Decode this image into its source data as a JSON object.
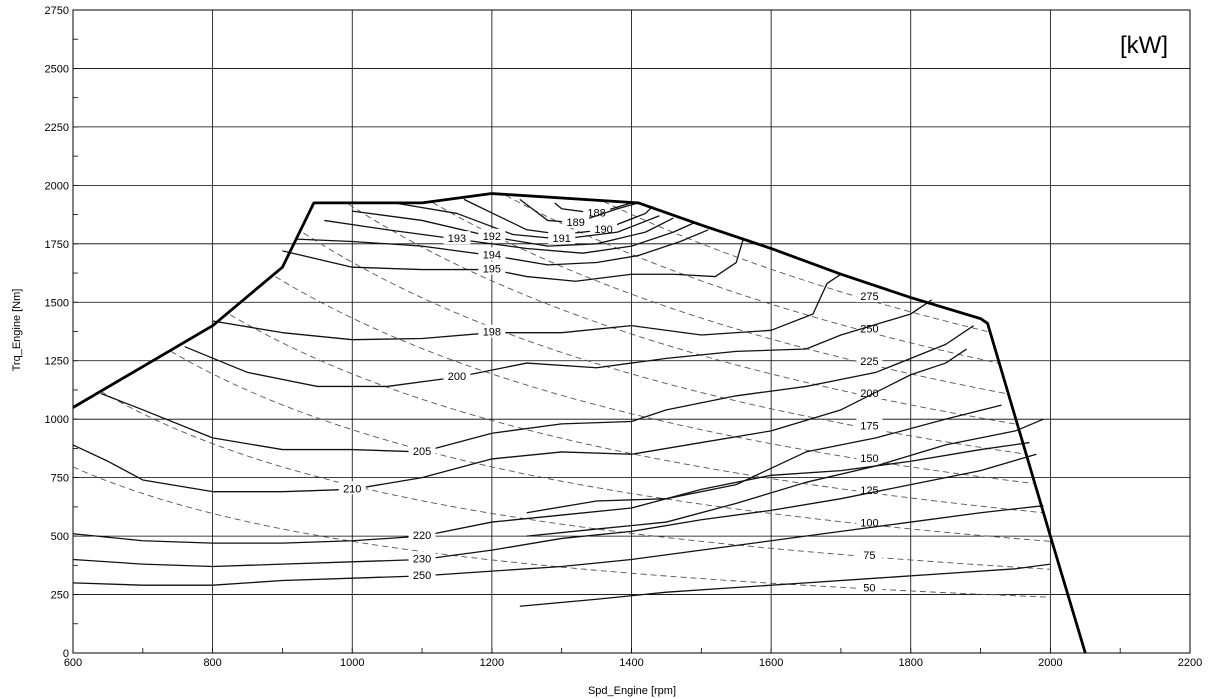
{
  "chart_data": {
    "type": "contour",
    "title": "",
    "xlabel": "Spd_Engine [rpm]",
    "ylabel": "Trq_Engine [Nm]",
    "unit_label": "[kW]",
    "xlim": [
      600,
      2200
    ],
    "ylim": [
      0,
      2750
    ],
    "x_ticks": [
      600,
      800,
      1000,
      1200,
      1400,
      1600,
      1800,
      2000,
      2200
    ],
    "y_ticks": [
      0,
      250,
      500,
      750,
      1000,
      1250,
      1500,
      1750,
      2000,
      2250,
      2500,
      2750
    ],
    "grid": true,
    "full_load_curve": [
      [
        600,
        1050
      ],
      [
        800,
        1400
      ],
      [
        900,
        1650
      ],
      [
        945,
        1925
      ],
      [
        1100,
        1925
      ],
      [
        1200,
        1965
      ],
      [
        1410,
        1925
      ],
      [
        1500,
        1830
      ],
      [
        1600,
        1730
      ],
      [
        1700,
        1620
      ],
      [
        1800,
        1520
      ],
      [
        1900,
        1430
      ],
      [
        1910,
        1410
      ],
      [
        2000,
        500
      ],
      [
        2050,
        0
      ]
    ],
    "bsfc_contours": [
      {
        "label": "188",
        "points": [
          [
            1290,
            1925
          ],
          [
            1300,
            1900
          ],
          [
            1350,
            1880
          ],
          [
            1400,
            1925
          ]
        ]
      },
      {
        "label": "189",
        "points": [
          [
            1240,
            1940
          ],
          [
            1280,
            1850
          ],
          [
            1320,
            1840
          ],
          [
            1380,
            1900
          ],
          [
            1410,
            1925
          ]
        ]
      },
      {
        "label": "190",
        "points": [
          [
            1160,
            1940
          ],
          [
            1250,
            1810
          ],
          [
            1300,
            1790
          ],
          [
            1360,
            1810
          ],
          [
            1420,
            1880
          ],
          [
            1430,
            1910
          ]
        ]
      },
      {
        "label": "191",
        "points": [
          [
            1060,
            1925
          ],
          [
            1150,
            1880
          ],
          [
            1230,
            1790
          ],
          [
            1300,
            1770
          ],
          [
            1380,
            1800
          ],
          [
            1440,
            1870
          ]
        ]
      },
      {
        "label": "192",
        "points": [
          [
            1000,
            1890
          ],
          [
            1100,
            1850
          ],
          [
            1200,
            1780
          ],
          [
            1280,
            1740
          ],
          [
            1350,
            1750
          ],
          [
            1420,
            1800
          ],
          [
            1460,
            1860
          ]
        ]
      },
      {
        "label": "193",
        "points": [
          [
            960,
            1850
          ],
          [
            1050,
            1810
          ],
          [
            1150,
            1770
          ],
          [
            1250,
            1730
          ],
          [
            1330,
            1710
          ],
          [
            1400,
            1740
          ],
          [
            1460,
            1800
          ],
          [
            1490,
            1840
          ]
        ]
      },
      {
        "label": "194",
        "points": [
          [
            920,
            1770
          ],
          [
            1000,
            1760
          ],
          [
            1100,
            1740
          ],
          [
            1200,
            1700
          ],
          [
            1280,
            1660
          ],
          [
            1350,
            1670
          ],
          [
            1410,
            1700
          ],
          [
            1470,
            1760
          ],
          [
            1510,
            1810
          ]
        ]
      },
      {
        "label": "195",
        "points": [
          [
            900,
            1720
          ],
          [
            1000,
            1650
          ],
          [
            1100,
            1640
          ],
          [
            1200,
            1640
          ],
          [
            1250,
            1610
          ],
          [
            1320,
            1590
          ],
          [
            1400,
            1620
          ],
          [
            1460,
            1620
          ],
          [
            1520,
            1610
          ],
          [
            1550,
            1670
          ],
          [
            1560,
            1770
          ]
        ]
      },
      {
        "label": "198",
        "points": [
          [
            800,
            1420
          ],
          [
            900,
            1370
          ],
          [
            1000,
            1340
          ],
          [
            1100,
            1345
          ],
          [
            1200,
            1370
          ],
          [
            1300,
            1370
          ],
          [
            1400,
            1400
          ],
          [
            1500,
            1360
          ],
          [
            1600,
            1380
          ],
          [
            1660,
            1450
          ],
          [
            1680,
            1580
          ],
          [
            1700,
            1620
          ]
        ]
      },
      {
        "label": "200",
        "points": [
          [
            760,
            1310
          ],
          [
            850,
            1200
          ],
          [
            950,
            1140
          ],
          [
            1050,
            1140
          ],
          [
            1150,
            1180
          ],
          [
            1250,
            1240
          ],
          [
            1350,
            1220
          ],
          [
            1450,
            1260
          ],
          [
            1550,
            1290
          ],
          [
            1650,
            1300
          ],
          [
            1700,
            1360
          ],
          [
            1800,
            1450
          ],
          [
            1830,
            1510
          ]
        ]
      },
      {
        "label": "205",
        "points": [
          [
            640,
            1110
          ],
          [
            700,
            1040
          ],
          [
            800,
            920
          ],
          [
            900,
            870
          ],
          [
            1000,
            870
          ],
          [
            1100,
            860
          ],
          [
            1200,
            940
          ],
          [
            1300,
            980
          ],
          [
            1400,
            990
          ],
          [
            1450,
            1040
          ],
          [
            1550,
            1100
          ],
          [
            1650,
            1140
          ],
          [
            1750,
            1200
          ],
          [
            1850,
            1320
          ],
          [
            1890,
            1400
          ]
        ]
      },
      {
        "label": "210",
        "points": [
          [
            600,
            890
          ],
          [
            650,
            820
          ],
          [
            700,
            740
          ],
          [
            800,
            690
          ],
          [
            900,
            690
          ],
          [
            1000,
            700
          ],
          [
            1100,
            750
          ],
          [
            1200,
            830
          ],
          [
            1300,
            860
          ],
          [
            1400,
            850
          ],
          [
            1500,
            900
          ],
          [
            1600,
            950
          ],
          [
            1700,
            1040
          ],
          [
            1800,
            1190
          ],
          [
            1850,
            1240
          ],
          [
            1880,
            1300
          ]
        ]
      },
      {
        "label": "",
        "points": [
          [
            1250,
            600
          ],
          [
            1350,
            650
          ],
          [
            1450,
            660
          ],
          [
            1550,
            720
          ],
          [
            1650,
            860
          ],
          [
            1750,
            920
          ],
          [
            1850,
            1000
          ],
          [
            1930,
            1060
          ]
        ]
      },
      {
        "label": "",
        "points": [
          [
            1250,
            500
          ],
          [
            1350,
            530
          ],
          [
            1450,
            560
          ],
          [
            1550,
            640
          ],
          [
            1650,
            730
          ],
          [
            1750,
            800
          ],
          [
            1850,
            890
          ],
          [
            1950,
            950
          ],
          [
            1990,
            1000
          ]
        ]
      },
      {
        "label": "220",
        "points": [
          [
            600,
            510
          ],
          [
            700,
            480
          ],
          [
            800,
            470
          ],
          [
            900,
            470
          ],
          [
            1000,
            480
          ],
          [
            1100,
            500
          ],
          [
            1200,
            560
          ],
          [
            1300,
            590
          ],
          [
            1400,
            620
          ],
          [
            1500,
            700
          ],
          [
            1600,
            760
          ],
          [
            1700,
            780
          ],
          [
            1800,
            820
          ],
          [
            1900,
            870
          ],
          [
            1970,
            900
          ]
        ]
      },
      {
        "label": "230",
        "points": [
          [
            600,
            400
          ],
          [
            700,
            380
          ],
          [
            800,
            370
          ],
          [
            900,
            380
          ],
          [
            1000,
            390
          ],
          [
            1100,
            400
          ],
          [
            1200,
            440
          ],
          [
            1300,
            490
          ],
          [
            1400,
            520
          ],
          [
            1500,
            570
          ],
          [
            1600,
            610
          ],
          [
            1700,
            660
          ],
          [
            1800,
            720
          ],
          [
            1900,
            780
          ],
          [
            1980,
            850
          ]
        ]
      },
      {
        "label": "250",
        "points": [
          [
            600,
            300
          ],
          [
            700,
            290
          ],
          [
            800,
            290
          ],
          [
            900,
            310
          ],
          [
            1000,
            320
          ],
          [
            1100,
            330
          ],
          [
            1200,
            350
          ],
          [
            1300,
            370
          ],
          [
            1400,
            400
          ],
          [
            1500,
            440
          ],
          [
            1600,
            480
          ],
          [
            1700,
            520
          ],
          [
            1800,
            560
          ],
          [
            1900,
            600
          ],
          [
            1990,
            630
          ]
        ]
      },
      {
        "label": "",
        "points": [
          [
            1240,
            200
          ],
          [
            1350,
            230
          ],
          [
            1450,
            260
          ],
          [
            1550,
            280
          ],
          [
            1650,
            300
          ],
          [
            1750,
            320
          ],
          [
            1850,
            340
          ],
          [
            1950,
            360
          ],
          [
            2000,
            380
          ]
        ]
      }
    ],
    "power_lines": [
      {
        "label": "275",
        "kw": 275
      },
      {
        "label": "250",
        "kw": 250
      },
      {
        "label": "225",
        "kw": 225
      },
      {
        "label": "200",
        "kw": 200
      },
      {
        "label": "175",
        "kw": 175
      },
      {
        "label": "150",
        "kw": 150
      },
      {
        "label": "125",
        "kw": 125
      },
      {
        "label": "100",
        "kw": 100
      },
      {
        "label": "75",
        "kw": 75
      },
      {
        "label": "50",
        "kw": 50
      }
    ]
  }
}
